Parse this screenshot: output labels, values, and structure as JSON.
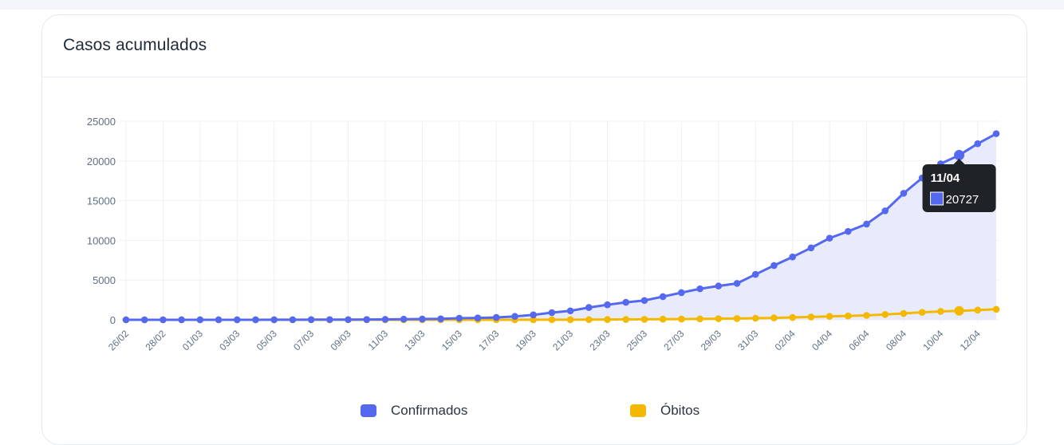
{
  "card": {
    "title": "Casos acumulados"
  },
  "colors": {
    "confirmados": "#5468f0",
    "obitos": "#f5b800",
    "area": "#e4e8fc",
    "grid": "#edf0f5",
    "tooltip_bg": "#1f2226"
  },
  "tooltip": {
    "date": "11/04",
    "value": "20727"
  },
  "legend": [
    {
      "label": "Confirmados",
      "color": "#5468f0"
    },
    {
      "label": "Óbitos",
      "color": "#f5b800"
    }
  ],
  "chart_data": {
    "type": "line",
    "title": "Casos acumulados",
    "xlabel": "",
    "ylabel": "",
    "ylim": [
      0,
      25000
    ],
    "yticks": [
      0,
      5000,
      10000,
      15000,
      20000,
      25000
    ],
    "grid": true,
    "legend_position": "bottom",
    "categories": [
      "26/02",
      "27/02",
      "28/02",
      "29/02",
      "01/03",
      "02/03",
      "03/03",
      "04/03",
      "05/03",
      "06/03",
      "07/03",
      "08/03",
      "09/03",
      "10/03",
      "11/03",
      "12/03",
      "13/03",
      "14/03",
      "15/03",
      "16/03",
      "17/03",
      "18/03",
      "19/03",
      "20/03",
      "21/03",
      "22/03",
      "23/03",
      "24/03",
      "25/03",
      "26/03",
      "27/03",
      "28/03",
      "29/03",
      "30/03",
      "31/03",
      "01/04",
      "02/04",
      "03/04",
      "04/04",
      "05/04",
      "06/04",
      "07/04",
      "08/04",
      "09/04",
      "10/04",
      "11/04",
      "12/04",
      "13/04"
    ],
    "tick_labels": [
      "26/02",
      "28/02",
      "01/03",
      "03/03",
      "05/03",
      "07/03",
      "09/03",
      "11/03",
      "13/03",
      "15/03",
      "17/03",
      "19/03",
      "21/03",
      "23/03",
      "25/03",
      "27/03",
      "29/03",
      "31/03",
      "02/04",
      "04/04",
      "06/04",
      "08/04",
      "10/04",
      "12/04"
    ],
    "series": [
      {
        "name": "Confirmados",
        "color": "#5468f0",
        "values": [
          1,
          1,
          1,
          2,
          2,
          2,
          2,
          4,
          8,
          13,
          19,
          25,
          25,
          34,
          52,
          77,
          98,
          121,
          200,
          234,
          291,
          428,
          621,
          904,
          1128,
          1546,
          1891,
          2201,
          2433,
          2915,
          3417,
          3904,
          4256,
          4579,
          5717,
          6836,
          7910,
          9056,
          10278,
          11130,
          12056,
          13717,
          15927,
          17857,
          19638,
          20727,
          22169,
          23430
        ]
      },
      {
        "name": "Óbitos",
        "color": "#f5b800",
        "values": [
          0,
          0,
          0,
          0,
          0,
          0,
          0,
          0,
          0,
          0,
          0,
          0,
          0,
          0,
          0,
          0,
          0,
          0,
          0,
          0,
          1,
          4,
          7,
          11,
          18,
          25,
          34,
          46,
          57,
          77,
          92,
          114,
          136,
          159,
          201,
          241,
          299,
          359,
          432,
          486,
          553,
          667,
          800,
          941,
          1056,
          1124,
          1223,
          1328
        ]
      }
    ]
  }
}
